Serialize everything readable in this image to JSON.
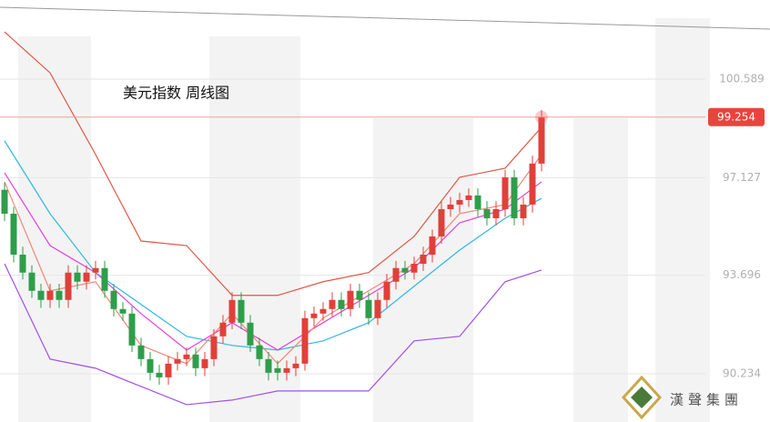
{
  "chart_data": {
    "type": "candlestick",
    "title": "美元指数 周线图",
    "ylim": [
      88.54,
      103.37
    ],
    "yticks": [
      100.589,
      97.127,
      93.696,
      90.234
    ],
    "grid": true,
    "up_color": "#e0403a",
    "down_color": "#2e9e4a",
    "open": [
      96.7,
      95.86,
      94.42,
      93.79,
      93.15,
      92.83,
      93.15,
      92.83,
      93.79,
      93.47,
      93.79,
      93.95,
      93.15,
      92.51,
      92.35,
      91.23,
      90.75,
      90.27,
      90.11,
      90.59,
      90.75,
      90.91,
      90.43,
      90.75,
      91.55,
      92.03,
      92.83,
      92.03,
      91.23,
      90.75,
      90.43,
      90.27,
      90.43,
      90.59,
      92.19,
      92.35,
      92.51,
      92.83,
      92.51,
      93.15,
      92.83,
      92.19,
      92.83,
      93.47,
      93.95,
      93.79,
      94.1,
      94.42,
      95.06,
      96.02,
      96.18,
      96.34,
      96.5,
      96.02,
      95.7,
      96.02,
      97.14,
      95.7,
      96.18,
      97.62
    ],
    "high": [
      96.95,
      96.1,
      94.7,
      94.05,
      93.4,
      93.4,
      93.4,
      94.05,
      94.05,
      94.05,
      94.2,
      94.2,
      93.4,
      92.75,
      92.6,
      91.5,
      91.0,
      90.55,
      90.85,
      91.0,
      91.15,
      91.15,
      91.0,
      91.8,
      92.3,
      93.1,
      93.1,
      92.3,
      91.5,
      91.0,
      90.7,
      90.7,
      90.85,
      92.45,
      92.6,
      92.75,
      93.1,
      93.1,
      93.4,
      93.4,
      93.1,
      93.1,
      93.75,
      94.2,
      94.2,
      94.35,
      94.7,
      95.3,
      96.3,
      96.45,
      96.6,
      96.75,
      96.75,
      96.3,
      96.3,
      97.4,
      97.4,
      96.45,
      97.9,
      99.5
    ],
    "low": [
      95.6,
      94.15,
      93.55,
      92.9,
      92.55,
      92.55,
      92.55,
      92.55,
      93.2,
      93.2,
      93.55,
      92.9,
      92.25,
      92.1,
      91.0,
      90.5,
      90.0,
      89.85,
      89.85,
      90.35,
      90.5,
      90.15,
      90.15,
      90.5,
      91.3,
      91.8,
      91.8,
      91.0,
      90.5,
      90.0,
      90.0,
      90.0,
      90.15,
      90.35,
      91.9,
      92.1,
      92.25,
      92.25,
      92.25,
      92.55,
      91.95,
      91.95,
      92.55,
      93.2,
      93.55,
      93.55,
      93.85,
      94.15,
      94.8,
      95.75,
      95.9,
      96.1,
      95.75,
      95.45,
      95.45,
      95.75,
      95.45,
      95.45,
      95.9,
      97.35
    ],
    "close": [
      95.86,
      94.42,
      93.79,
      93.15,
      92.83,
      93.15,
      92.83,
      93.79,
      93.47,
      93.79,
      93.95,
      93.15,
      92.51,
      92.35,
      91.23,
      90.75,
      90.27,
      90.11,
      90.59,
      90.75,
      90.91,
      90.43,
      90.75,
      91.55,
      92.03,
      92.83,
      92.03,
      91.23,
      90.75,
      90.27,
      90.27,
      90.43,
      90.59,
      92.19,
      92.35,
      92.51,
      92.83,
      92.51,
      93.15,
      92.83,
      92.19,
      92.83,
      93.47,
      93.95,
      93.79,
      94.1,
      94.42,
      95.06,
      96.02,
      96.18,
      96.34,
      96.5,
      96.02,
      95.7,
      96.02,
      97.14,
      95.7,
      96.18,
      97.62,
      99.254
    ],
    "current_price": 99.254,
    "lines": [
      {
        "color": "#e05545",
        "x": [
          0,
          5,
          10,
          15,
          20,
          25,
          30,
          35,
          40,
          45,
          50,
          55,
          59
        ],
        "values": [
          102.25,
          100.81,
          97.94,
          94.9,
          94.74,
          92.99,
          92.99,
          93.47,
          93.79,
          95.06,
          97.14,
          97.46,
          98.9
        ]
      },
      {
        "color": "#a050e8",
        "x": [
          0,
          5,
          10,
          15,
          20,
          25,
          30,
          35,
          40,
          45,
          50,
          55,
          59
        ],
        "values": [
          94.1,
          90.75,
          90.43,
          89.79,
          89.15,
          89.31,
          89.63,
          89.63,
          89.63,
          91.39,
          91.55,
          93.47,
          93.88
        ]
      },
      {
        "color": "#30b8e0",
        "x": [
          0,
          5,
          10,
          15,
          20,
          25,
          30,
          35,
          40,
          45,
          50,
          55,
          59
        ],
        "values": [
          98.42,
          95.86,
          93.79,
          92.67,
          91.55,
          91.23,
          91.07,
          91.39,
          92.03,
          93.31,
          94.58,
          95.7,
          96.4
        ]
      },
      {
        "color": "#e040d8",
        "x": [
          0,
          5,
          10,
          15,
          20,
          25,
          30,
          35,
          40,
          45,
          50,
          55,
          59
        ],
        "values": [
          97.3,
          94.74,
          93.79,
          92.35,
          91.07,
          92.03,
          91.07,
          92.03,
          92.99,
          93.95,
          95.54,
          96.02,
          96.98
        ]
      },
      {
        "color": "#f08878",
        "x": [
          0,
          5,
          10,
          15,
          20,
          25,
          30,
          35,
          40,
          45,
          50,
          55,
          59
        ],
        "values": [
          96.98,
          93.15,
          93.47,
          91.23,
          90.59,
          92.35,
          90.59,
          92.19,
          93.15,
          94.1,
          95.86,
          96.18,
          97.94
        ]
      }
    ],
    "watermark": "漢聲集團"
  }
}
